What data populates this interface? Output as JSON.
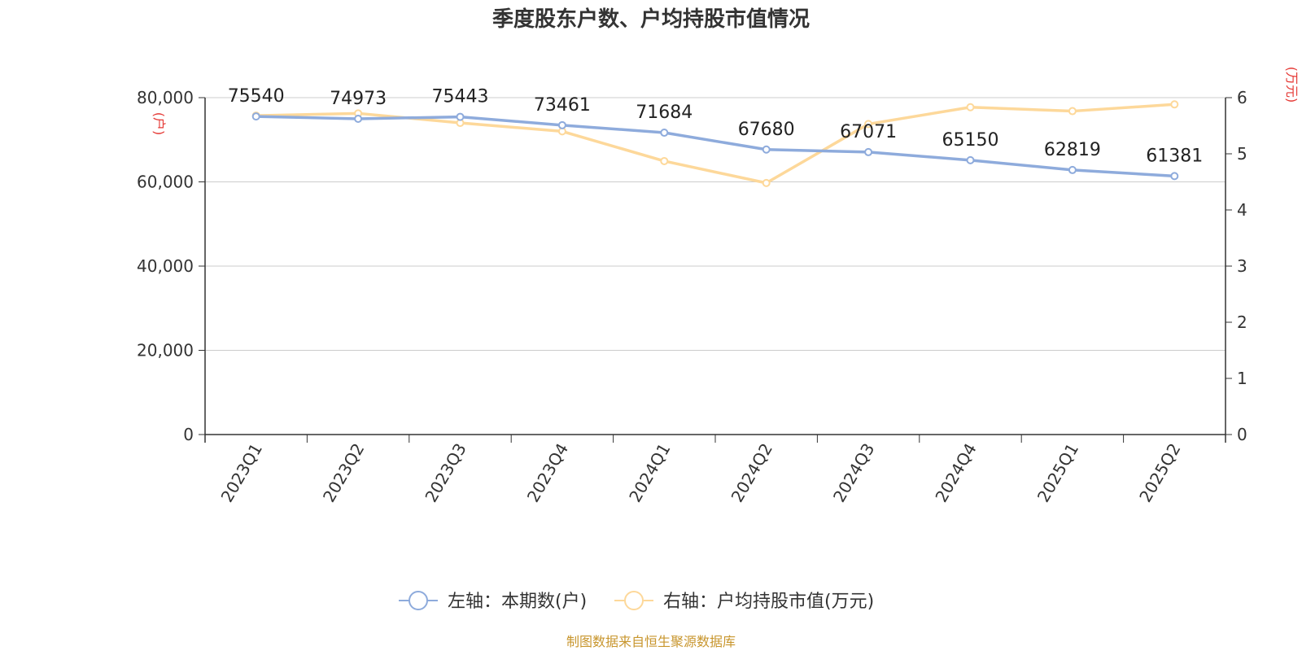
{
  "chart_data": {
    "type": "line",
    "title": "季度股东户数、户均持股市值情况",
    "categories": [
      "2023Q1",
      "2023Q2",
      "2023Q3",
      "2023Q4",
      "2024Q1",
      "2024Q2",
      "2024Q3",
      "2024Q4",
      "2025Q1",
      "2025Q2"
    ],
    "left_axis": {
      "unit": "(户)",
      "ylim": [
        0,
        80000
      ],
      "ticks": [
        "0",
        "20,000",
        "40,000",
        "60,000",
        "80,000"
      ],
      "tick_values": [
        0,
        20000,
        40000,
        60000,
        80000
      ]
    },
    "right_axis": {
      "unit": "(万元)",
      "ylim": [
        0,
        6
      ],
      "ticks": [
        "0",
        "1",
        "2",
        "3",
        "4",
        "5",
        "6"
      ],
      "tick_values": [
        0,
        1,
        2,
        3,
        4,
        5,
        6
      ]
    },
    "series": [
      {
        "name": "左轴：本期数(户)",
        "axis": "left",
        "color": "#8eabdc",
        "values": [
          75540,
          74973,
          75443,
          73461,
          71684,
          67680,
          67071,
          65150,
          62819,
          61381
        ],
        "labels": [
          "75540",
          "74973",
          "75443",
          "73461",
          "71684",
          "67680",
          "67071",
          "65150",
          "62819",
          "61381"
        ]
      },
      {
        "name": "右轴：户均持股市值(万元)",
        "axis": "right",
        "color": "#fdd89a",
        "values": [
          5.68,
          5.72,
          5.55,
          5.4,
          4.87,
          4.48,
          5.53,
          5.83,
          5.76,
          5.88
        ]
      }
    ],
    "grid": true,
    "legend": "bottom"
  },
  "source": "制图数据来自恒生聚源数据库"
}
